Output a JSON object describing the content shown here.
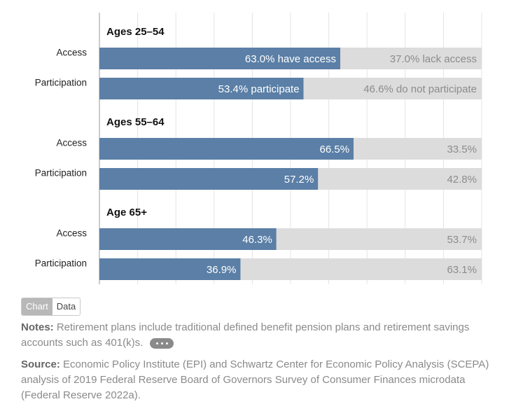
{
  "chart_data": {
    "type": "bar",
    "orientation": "horizontal",
    "stacked": true,
    "xlim": [
      0,
      100
    ],
    "grid": true,
    "colors": {
      "primary": "#5b7fa6",
      "remainder": "#dcdcdc",
      "primary_label": "#ffffff",
      "remainder_label": "#8c8c8c"
    },
    "groups": [
      {
        "title": "Ages 25–54",
        "bars": [
          {
            "category": "Access",
            "value": 63.0,
            "remainder": 37.0,
            "value_label": "63.0% have access",
            "remainder_label": "37.0% lack access"
          },
          {
            "category": "Participation",
            "value": 53.4,
            "remainder": 46.6,
            "value_label": "53.4% participate",
            "remainder_label": "46.6% do not participate"
          }
        ]
      },
      {
        "title": "Ages 55–64",
        "bars": [
          {
            "category": "Access",
            "value": 66.5,
            "remainder": 33.5,
            "value_label": "66.5%",
            "remainder_label": "33.5%"
          },
          {
            "category": "Participation",
            "value": 57.2,
            "remainder": 42.8,
            "value_label": "57.2%",
            "remainder_label": "42.8%"
          }
        ]
      },
      {
        "title": "Age 65+",
        "bars": [
          {
            "category": "Access",
            "value": 46.3,
            "remainder": 53.7,
            "value_label": "46.3%",
            "remainder_label": "53.7%"
          },
          {
            "category": "Participation",
            "value": 36.9,
            "remainder": 63.1,
            "value_label": "36.9%",
            "remainder_label": "63.1%"
          }
        ]
      }
    ]
  },
  "toggle": {
    "chart_label": "Chart",
    "data_label": "Data"
  },
  "notes": {
    "label": "Notes:",
    "text": "Retirement plans include traditional defined benefit pension plans and retirement savings accounts such as 401(k)s."
  },
  "source": {
    "label": "Source:",
    "text": "Economic Policy Institute (EPI) and Schwartz Center for Economic Policy Analysis (SCEPA) analysis of 2019 Federal Reserve Board of Governors Survey of Consumer Finances microdata (Federal Reserve 2022a)."
  }
}
